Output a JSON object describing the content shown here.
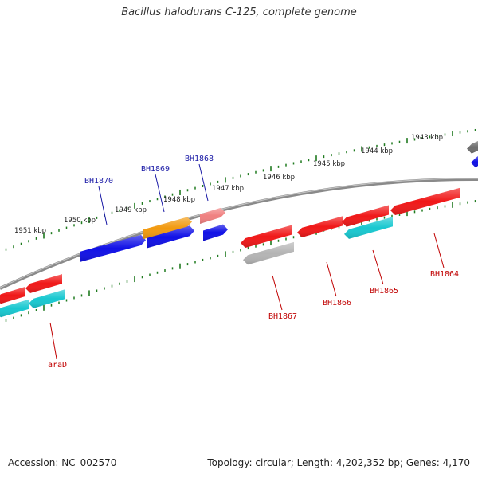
{
  "title": "Bacillus halodurans C-125, complete genome",
  "footer": {
    "accession": "Accession: NC_002570",
    "summary": "Topology: circular; Length: 4,202,352 bp; Genes: 4,170"
  },
  "ruler_upper": {
    "unit": "kbp",
    "ticks": [
      "1951 kbp",
      "1950 kbp",
      "1949 kbp",
      "1948 kbp",
      "1947 kbp",
      "1946 kbp",
      "1945 kbp",
      "1944 kbp",
      "1943 kbp"
    ]
  },
  "colors": {
    "backbone": "#8a8a8a",
    "ruler": "#1f7a1f",
    "label_plus": "#1a1aa6",
    "label_minus": "#c00000",
    "blue": "#1010e6",
    "orange": "#f29a10",
    "pink": "#f08080",
    "red": "#f01818",
    "cyan": "#18c8d0",
    "gray": "#b4b4b4",
    "dark_gray": "#6e6e6e"
  },
  "genes_upper": [
    {
      "name": "BH1870",
      "color": "blue"
    },
    {
      "name": "BH1869",
      "color": "blue"
    },
    {
      "name": "BH1868",
      "color": "blue"
    },
    {
      "name": "",
      "color": "orange"
    },
    {
      "name": "",
      "color": "pink"
    },
    {
      "name": "",
      "color": "dark_gray"
    },
    {
      "name": "",
      "color": "blue"
    }
  ],
  "genes_lower": [
    {
      "name": "araD",
      "color": "red"
    },
    {
      "name": "BH1867",
      "color": "red"
    },
    {
      "name": "BH1866",
      "color": "red"
    },
    {
      "name": "BH1865",
      "color": "red"
    },
    {
      "name": "BH1864",
      "color": "red"
    }
  ],
  "genes_lower2": [
    {
      "name": "",
      "color": "cyan"
    },
    {
      "name": "",
      "color": "gray"
    }
  ]
}
